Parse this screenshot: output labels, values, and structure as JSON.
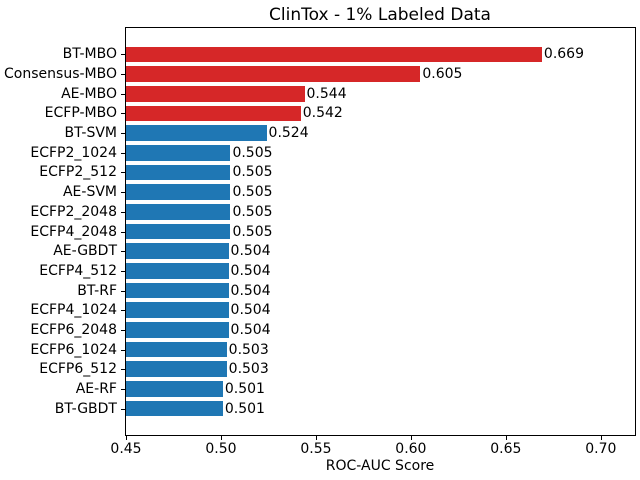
{
  "chart_data": {
    "type": "bar",
    "orientation": "horizontal",
    "title": "ClinTox - 1% Labeled Data",
    "xlabel": "ROC-AUC Score",
    "ylabel": "",
    "xlim": [
      0.45,
      0.718
    ],
    "grid": false,
    "legend": null,
    "colors": {
      "highlight": "#d62728",
      "default": "#1f77b4"
    },
    "xticks": [
      {
        "value": 0.45,
        "label": "0.45"
      },
      {
        "value": 0.5,
        "label": "0.50"
      },
      {
        "value": 0.55,
        "label": "0.55"
      },
      {
        "value": 0.6,
        "label": "0.60"
      },
      {
        "value": 0.65,
        "label": "0.65"
      },
      {
        "value": 0.7,
        "label": "0.70"
      }
    ],
    "bars": [
      {
        "category": "BT-MBO",
        "value": 0.669,
        "label": "0.669",
        "color": "#d62728"
      },
      {
        "category": "Consensus-MBO",
        "value": 0.605,
        "label": "0.605",
        "color": "#d62728"
      },
      {
        "category": "AE-MBO",
        "value": 0.544,
        "label": "0.544",
        "color": "#d62728"
      },
      {
        "category": "ECFP-MBO",
        "value": 0.542,
        "label": "0.542",
        "color": "#d62728"
      },
      {
        "category": "BT-SVM",
        "value": 0.524,
        "label": "0.524",
        "color": "#1f77b4"
      },
      {
        "category": "ECFP2_1024",
        "value": 0.505,
        "label": "0.505",
        "color": "#1f77b4"
      },
      {
        "category": "ECFP2_512",
        "value": 0.505,
        "label": "0.505",
        "color": "#1f77b4"
      },
      {
        "category": "AE-SVM",
        "value": 0.505,
        "label": "0.505",
        "color": "#1f77b4"
      },
      {
        "category": "ECFP2_2048",
        "value": 0.505,
        "label": "0.505",
        "color": "#1f77b4"
      },
      {
        "category": "ECFP4_2048",
        "value": 0.505,
        "label": "0.505",
        "color": "#1f77b4"
      },
      {
        "category": "AE-GBDT",
        "value": 0.504,
        "label": "0.504",
        "color": "#1f77b4"
      },
      {
        "category": "ECFP4_512",
        "value": 0.504,
        "label": "0.504",
        "color": "#1f77b4"
      },
      {
        "category": "BT-RF",
        "value": 0.504,
        "label": "0.504",
        "color": "#1f77b4"
      },
      {
        "category": "ECFP4_1024",
        "value": 0.504,
        "label": "0.504",
        "color": "#1f77b4"
      },
      {
        "category": "ECFP6_2048",
        "value": 0.504,
        "label": "0.504",
        "color": "#1f77b4"
      },
      {
        "category": "ECFP6_1024",
        "value": 0.503,
        "label": "0.503",
        "color": "#1f77b4"
      },
      {
        "category": "ECFP6_512",
        "value": 0.503,
        "label": "0.503",
        "color": "#1f77b4"
      },
      {
        "category": "AE-RF",
        "value": 0.501,
        "label": "0.501",
        "color": "#1f77b4"
      },
      {
        "category": "BT-GBDT",
        "value": 0.501,
        "label": "0.501",
        "color": "#1f77b4"
      }
    ]
  }
}
